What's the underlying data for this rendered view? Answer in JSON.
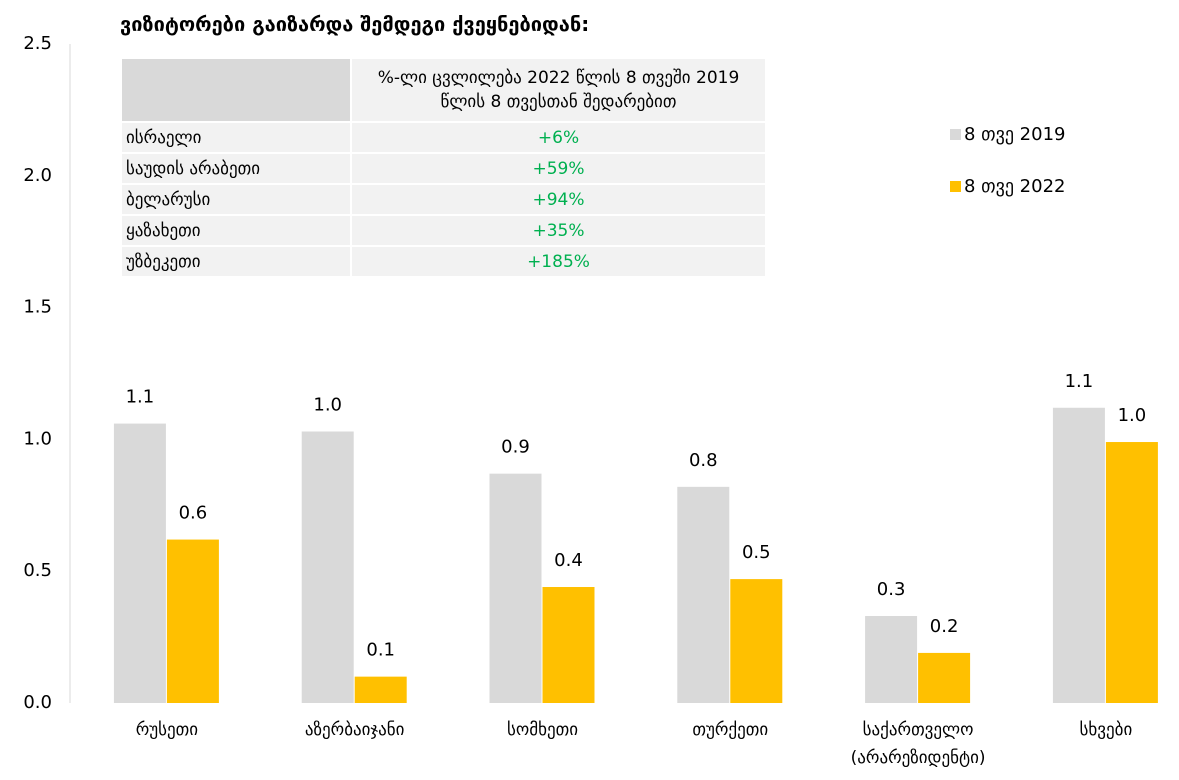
{
  "chart_data": {
    "type": "bar",
    "title": "ვიზიტორები გაიზარდა შემდეგი ქვეყნებიდან:",
    "categories": [
      "რუსეთი",
      "აზერბაიჯანი",
      "სომხეთი",
      "თურქეთი",
      "საქართველო (არარეზიდენტი)",
      "სხვები"
    ],
    "series": [
      {
        "name": "8 თვე 2019",
        "color": "#d9d9d9",
        "values": [
          1.06,
          1.03,
          0.87,
          0.82,
          0.33,
          1.12
        ],
        "value_labels": [
          "1.1",
          "1.0",
          "0.9",
          "0.8",
          "0.3",
          "1.1"
        ]
      },
      {
        "name": "8 თვე 2022",
        "color": "#ffc000",
        "values": [
          0.62,
          0.1,
          0.44,
          0.47,
          0.19,
          0.99
        ],
        "value_labels": [
          "0.6",
          "0.1",
          "0.4",
          "0.5",
          "0.2",
          "1.0"
        ]
      }
    ],
    "ylim": [
      0,
      2.5
    ],
    "yticks": [
      {
        "value": 0,
        "label": "0.0"
      },
      0.5,
      {
        "value": 1,
        "label": "1.0"
      },
      1.5,
      {
        "value": 2,
        "label": "2.0"
      },
      2.5
    ],
    "grid": false,
    "legend": "upper right"
  },
  "table": {
    "column_header": "%-ლი ცვლილება 2022 წლის 8 თვეში 2019 წლის 8 თვესთან შედარებით",
    "rows": [
      [
        "ისრაელი",
        "+6%"
      ],
      [
        "საუდის არაბეთი",
        "+59%"
      ],
      [
        "ბელარუსი",
        "+94%"
      ],
      [
        "ყაზახეთი",
        "+35%"
      ],
      [
        "უზბეკეთი",
        "+185%"
      ]
    ]
  }
}
